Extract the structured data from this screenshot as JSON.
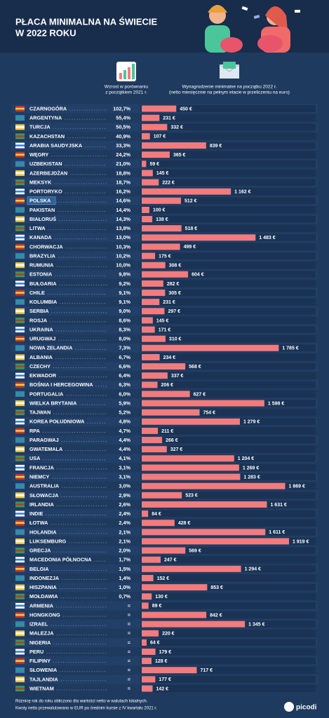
{
  "chart_data": {
    "type": "bar",
    "title": [
      "PŁACA MINIMALNA NA ŚWIECIE",
      "W 2022 ROKU"
    ],
    "growth_header": [
      "Wzrost w porównaniu",
      "z początkiem 2021 r."
    ],
    "value_header": [
      "Wynagrodzenie minimalne na początku 2022 r.",
      "(netto miesięcznie na pełnym etacie w przeliczeniu na euro)"
    ],
    "categories": [
      "CZARNOGÓRA",
      "ARGENTYNA",
      "TURCJA",
      "KAZACHSTAN",
      "ARABIA SAUDYJSKA",
      "WĘGRY",
      "UZBEKISTAN",
      "AZERBEJDŻAN",
      "MEKSYK",
      "PORTORYKO",
      "POLSKA",
      "PAKISTAN",
      "BIAŁORUŚ",
      "LITWA",
      "KANADA",
      "CHORWACJA",
      "BRAZYLIA",
      "RUMUNIA",
      "ESTONIA",
      "BUŁGARIA",
      "CHILE",
      "KOLUMBIA",
      "SERBIA",
      "ROSJA",
      "UKRAINA",
      "URUGWAJ",
      "NOWA ZELANDIA",
      "ALBANIA",
      "CZECHY",
      "EKWADOR",
      "BOŚNIA I HERCEGOWINA",
      "PORTUGALIA",
      "WIELKA BRYTANIA",
      "TAJWAN",
      "KOREA POŁUDNIOWA",
      "RPA",
      "PARAGWAJ",
      "GWATEMALA",
      "USA",
      "FRANCJA",
      "NIEMCY",
      "AUSTRALIA",
      "SŁOWACJA",
      "IRLANDIA",
      "INDIE",
      "ŁOTWA",
      "HOLANDIA",
      "LUKSEMBURG",
      "GRECJA",
      "MACEDONIA PÓŁNOCNA",
      "BELGIA",
      "INDONEZJA",
      "HISZPANIA",
      "MOŁDAWIA",
      "ARMENIA",
      "HONGKONG",
      "IZRAEL",
      "MALEZJA",
      "NIGERIA",
      "PERU",
      "FILIPINY",
      "SŁOWENIA",
      "TAJLANDIA",
      "WIETNAM"
    ],
    "growth": [
      "102,7%",
      "55,4%",
      "50,5%",
      "40,9%",
      "33,3%",
      "24,2%",
      "21,0%",
      "18,8%",
      "18,7%",
      "16,2%",
      "14,6%",
      "14,4%",
      "14,3%",
      "13,8%",
      "13,0%",
      "10,3%",
      "10,2%",
      "10,0%",
      "9,8%",
      "9,2%",
      "9,1%",
      "9,1%",
      "9,0%",
      "8,6%",
      "8,3%",
      "8,0%",
      "7,3%",
      "6,7%",
      "6,6%",
      "6,4%",
      "6,3%",
      "6,0%",
      "5,9%",
      "5,2%",
      "4,8%",
      "4,7%",
      "4,4%",
      "4,4%",
      "4,1%",
      "3,1%",
      "3,1%",
      "3,0%",
      "2,9%",
      "2,6%",
      "2,4%",
      "2,4%",
      "2,1%",
      "2,1%",
      "2,0%",
      "1,7%",
      "1,5%",
      "1,4%",
      "1,0%",
      "0,7%",
      "=",
      "=",
      "=",
      "=",
      "=",
      "=",
      "=",
      "=",
      "=",
      "="
    ],
    "values": [
      450,
      231,
      332,
      107,
      839,
      365,
      59,
      145,
      222,
      1162,
      512,
      100,
      138,
      518,
      1483,
      499,
      175,
      308,
      604,
      282,
      305,
      231,
      297,
      145,
      171,
      310,
      1785,
      234,
      568,
      337,
      206,
      627,
      1598,
      754,
      1279,
      211,
      266,
      327,
      1204,
      1269,
      1283,
      1869,
      523,
      1631,
      84,
      428,
      1611,
      1919,
      569,
      247,
      1294,
      152,
      853,
      130,
      89,
      842,
      1345,
      220,
      64,
      179,
      128,
      717,
      177,
      142
    ],
    "value_labels": [
      "450 €",
      "231 €",
      "332 €",
      "107 €",
      "839 €",
      "365 €",
      "59 €",
      "145 €",
      "222 €",
      "1 162 €",
      "512 €",
      "100 €",
      "138 €",
      "518 €",
      "1 483 €",
      "499 €",
      "175 €",
      "308 €",
      "604 €",
      "282 €",
      "305 €",
      "231 €",
      "297 €",
      "145 €",
      "171 €",
      "310 €",
      "1 785 €",
      "234 €",
      "568 €",
      "337 €",
      "206 €",
      "627 €",
      "1 598 €",
      "754 €",
      "1 279 €",
      "211 €",
      "266 €",
      "327 €",
      "1 204 €",
      "1 269 €",
      "1 283 €",
      "1 869 €",
      "523 €",
      "1 631 €",
      "84 €",
      "428 €",
      "1 611 €",
      "1 919 €",
      "569 €",
      "247 €",
      "1 294 €",
      "152 €",
      "853 €",
      "130 €",
      "89 €",
      "842 €",
      "1 345 €",
      "220 €",
      "64 €",
      "179 €",
      "128 €",
      "717 €",
      "177 €",
      "142 €"
    ],
    "color": "#f27b7d",
    "highlight": 10,
    "footnote": [
      "Różnicę rok do roku obliczono dla wartości netto w walutach lokalnych.",
      "Kwoty netto przewalutowano w EUR po średnim kursie z IV kwartału 2021 r."
    ],
    "logo": "picodi"
  }
}
